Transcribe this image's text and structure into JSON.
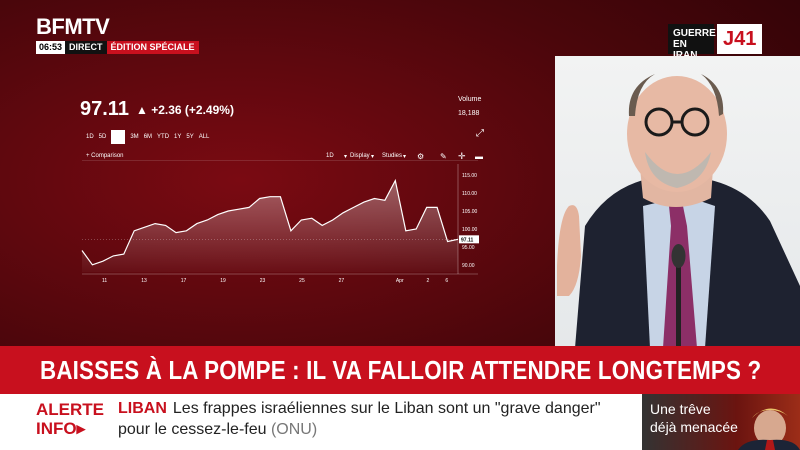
{
  "channel": {
    "logo": "BFMTV",
    "time": "06:53",
    "direct": "DIRECT",
    "edition": "ÉDITION SPÉCIALE"
  },
  "badge": {
    "text": "GUERRE EN IRAN",
    "day": "J41"
  },
  "stock": {
    "price": "97.11",
    "change": "▲ +2.36 (+2.49%)",
    "volume_label": "Volume",
    "volume_value": "18,188",
    "ranges": [
      "1D",
      "5D",
      "",
      "3M",
      "6M",
      "YTD",
      "1Y",
      "5Y",
      "ALL"
    ],
    "selected_range_index": 2,
    "comparison_label": "+ Comparison",
    "interval_label": "1D",
    "display_label": "Display",
    "studies_label": "Studies",
    "icons": [
      "settings-icon",
      "pencil-icon",
      "crosshair-icon",
      "comment-icon",
      "expand-icon"
    ]
  },
  "chart_data": {
    "type": "area",
    "x_tick_labels": [
      "11",
      "13",
      "17",
      "19",
      "23",
      "25",
      "27",
      "Apr",
      "2",
      "6"
    ],
    "y_tick_labels": [
      "115.00",
      "110.00",
      "105.00",
      "100.00",
      "95.00",
      "90.00"
    ],
    "ylim": [
      88,
      117
    ],
    "last_value_label": "97.11",
    "y": [
      94.0,
      90.0,
      91.0,
      92.5,
      93.0,
      99.5,
      100.5,
      101.5,
      101.0,
      99.0,
      99.5,
      101.5,
      102.5,
      104.0,
      105.0,
      105.5,
      106.0,
      108.5,
      109.0,
      109.0,
      99.5,
      102.5,
      103.0,
      101.0,
      102.5,
      104.5,
      106.0,
      107.5,
      108.5,
      108.0,
      113.5,
      99.5,
      100.0,
      106.0,
      106.0,
      96.5,
      97.11
    ]
  },
  "headline": "BAISSES À LA POMPE : IL VA FALLOIR ATTENDRE LONGTEMPS ?",
  "alert": {
    "label_line1": "ALERTE",
    "label_line2": "INFO",
    "topic": "LIBAN",
    "text_line1": "Les frappes israéliennes sur le Liban sont un \"grave danger\"",
    "text_line2": "pour le cessez-le-feu",
    "source": "(ONU)"
  },
  "teaser": {
    "line1": "Une trêve",
    "line2": "déjà menacée"
  }
}
